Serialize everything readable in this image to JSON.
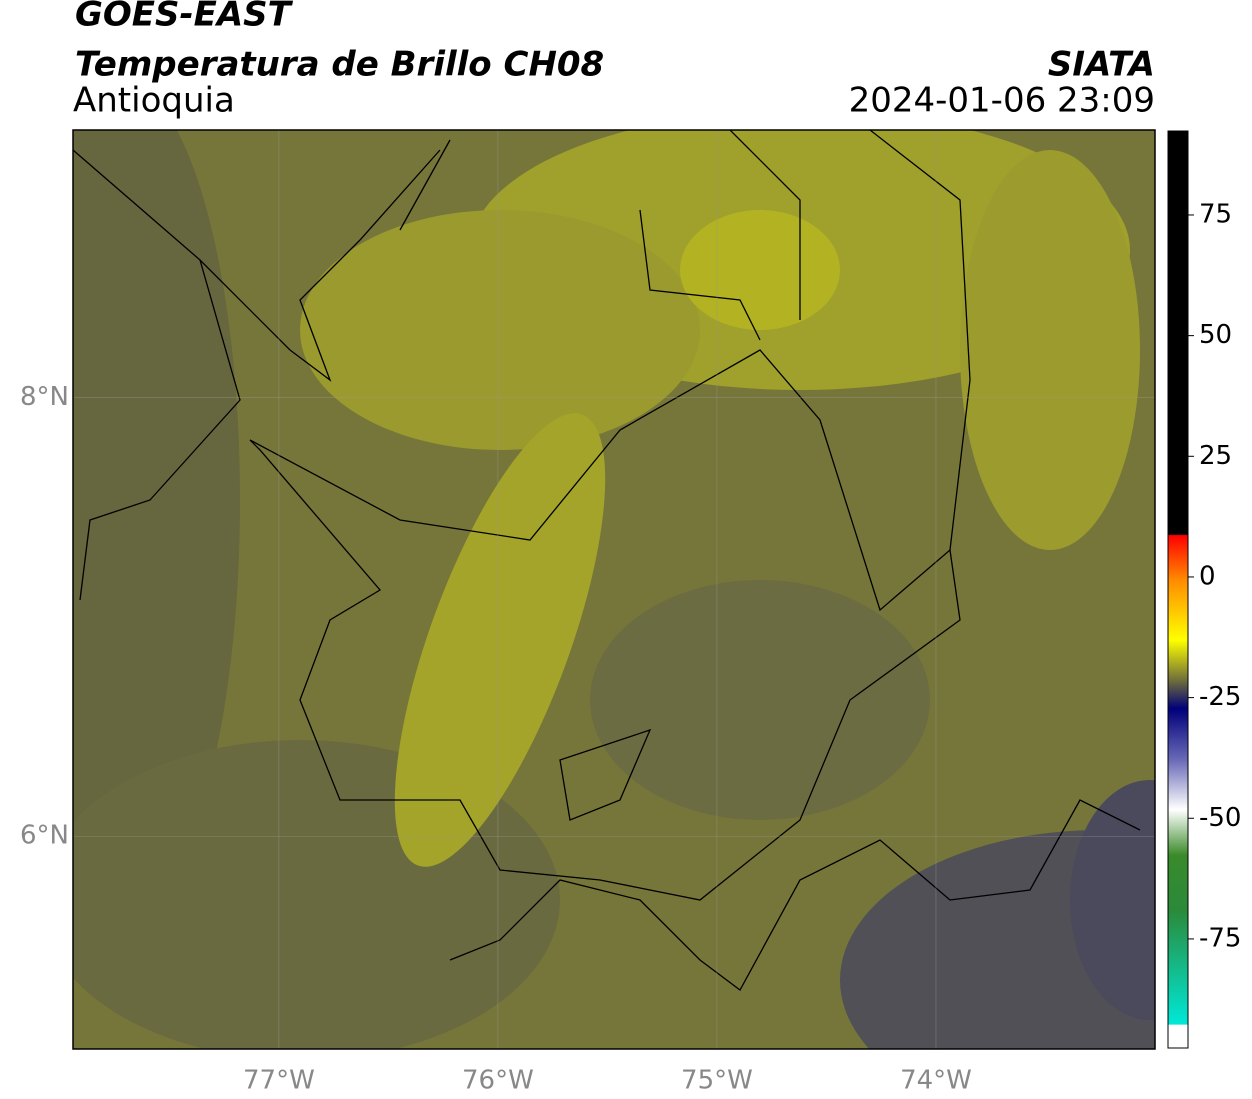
{
  "header": {
    "satellite": "GOES-EAST",
    "product": "Temperatura de Brillo CH08",
    "region": "Antioquia",
    "source": "SIATA",
    "datetime": "2024-01-06 23:09"
  },
  "map": {
    "xlim": [
      -77.94,
      -73.0
    ],
    "ylim": [
      5.03,
      9.22
    ],
    "xticks": [
      {
        "value": -77,
        "label": "77°W"
      },
      {
        "value": -76,
        "label": "76°W"
      },
      {
        "value": -75,
        "label": "75°W"
      },
      {
        "value": -74,
        "label": "74°W"
      }
    ],
    "yticks": [
      {
        "value": 8,
        "label": "8°N"
      },
      {
        "value": 6,
        "label": "6°N"
      }
    ],
    "grid": true
  },
  "colorbar": {
    "lim": [
      -97.6,
      92.4
    ],
    "ticks": [
      75,
      50,
      25,
      0,
      -25,
      -50,
      -75
    ]
  }
}
